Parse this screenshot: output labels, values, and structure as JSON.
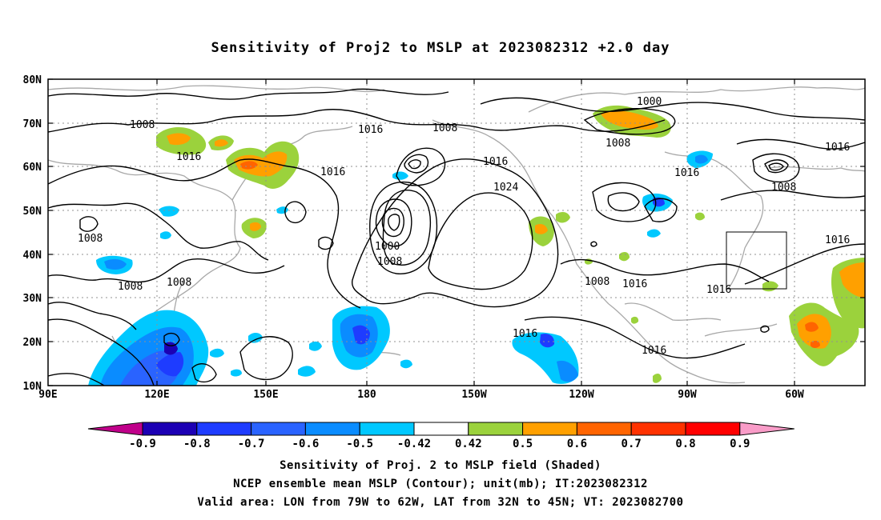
{
  "title": "Sensitivity of Proj2 to MSLP at 2023082312 +2.0 day",
  "axes": {
    "lat_labels": [
      "80N",
      "70N",
      "60N",
      "50N",
      "40N",
      "30N",
      "20N",
      "10N"
    ],
    "lon_labels": [
      "90E",
      "120E",
      "150E",
      "180",
      "150W",
      "120W",
      "90W",
      "60W"
    ]
  },
  "contour_labels": [
    "1008",
    "1016",
    "1008",
    "1016",
    "1000",
    "1008",
    "1016",
    "1024",
    "1008",
    "1016",
    "1008",
    "1016",
    "1016",
    "1008",
    "1000",
    "1008",
    "1016",
    "1008",
    "1016",
    "1016",
    "1016",
    "1016"
  ],
  "colorbar": {
    "labels": [
      "-0.9",
      "-0.8",
      "-0.7",
      "-0.6",
      "-0.5",
      "-0.42",
      "0.42",
      "0.5",
      "0.6",
      "0.7",
      "0.8",
      "0.9"
    ],
    "colors": [
      "#c0008a",
      "#1c00b4",
      "#1e3cff",
      "#2a63ff",
      "#0a8cff",
      "#00c8ff",
      "#ffffff",
      "#9bd23c",
      "#ffa000",
      "#ff6400",
      "#ff3200",
      "#ff0000",
      "#f99cc8"
    ]
  },
  "captions": {
    "line1": "Sensitivity of Proj. 2 to MSLP field (Shaded)",
    "line2": "NCEP ensemble mean MSLP (Contour); unit(mb); IT:2023082312",
    "line3": "Valid area: LON from 79W to 62W, LAT from 32N to 45N; VT: 2023082700"
  }
}
